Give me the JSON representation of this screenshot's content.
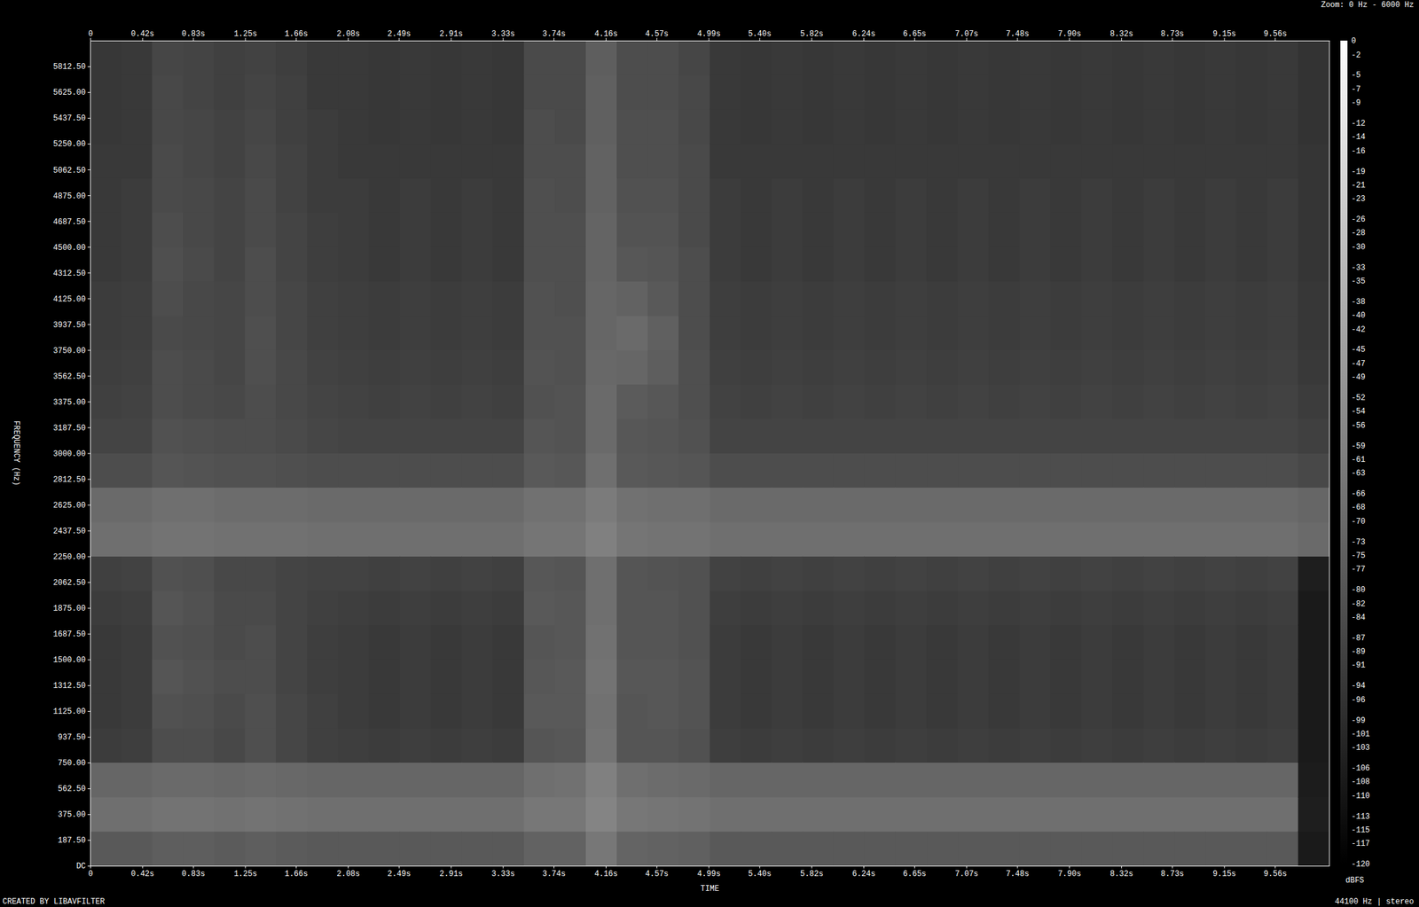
{
  "chart_data": {
    "type": "heatmap",
    "title": "Zoom: 0 Hz - 6000 Hz",
    "x_label": "TIME",
    "y_label": "FREQUENCY (Hz)",
    "annotations": [
      "CREATED BY LIBAVFILTER",
      "44100 Hz | stereo"
    ],
    "xlim": [
      0,
      10
    ],
    "ylim": [
      0,
      6000
    ],
    "xticks": [
      0,
      {
        "value": 0.42,
        "label": "0.42s"
      },
      {
        "value": 0.83,
        "label": "0.83s"
      },
      {
        "value": 1.25,
        "label": "1.25s"
      },
      {
        "value": 1.66,
        "label": "1.66s"
      },
      {
        "value": 2.08,
        "label": "2.08s"
      },
      {
        "value": 2.49,
        "label": "2.49s"
      },
      {
        "value": 2.91,
        "label": "2.91s"
      },
      {
        "value": 3.33,
        "label": "3.33s"
      },
      {
        "value": 3.74,
        "label": "3.74s"
      },
      {
        "value": 4.16,
        "label": "4.16s"
      },
      {
        "value": 4.57,
        "label": "4.57s"
      },
      {
        "value": 4.99,
        "label": "4.99s"
      },
      {
        "value": 5.4,
        "label": "5.40s"
      },
      {
        "value": 5.82,
        "label": "5.82s"
      },
      {
        "value": 6.24,
        "label": "6.24s"
      },
      {
        "value": 6.65,
        "label": "6.65s"
      },
      {
        "value": 7.07,
        "label": "7.07s"
      },
      {
        "value": 7.48,
        "label": "7.48s"
      },
      {
        "value": 7.9,
        "label": "7.90s"
      },
      {
        "value": 8.32,
        "label": "8.32s"
      },
      {
        "value": 8.73,
        "label": "8.73s"
      },
      {
        "value": 9.15,
        "label": "9.15s"
      },
      {
        "value": 9.56,
        "label": "9.56s"
      }
    ],
    "yticks": [
      {
        "value": 0,
        "label": "DC"
      },
      {
        "value": 187.5,
        "label": "187.50"
      },
      {
        "value": 375,
        "label": "375.00"
      },
      {
        "value": 562.5,
        "label": "562.50"
      },
      {
        "value": 750,
        "label": "750.00"
      },
      {
        "value": 937.5,
        "label": "937.50"
      },
      {
        "value": 1125,
        "label": "1125.00"
      },
      {
        "value": 1312.5,
        "label": "1312.50"
      },
      {
        "value": 1500,
        "label": "1500.00"
      },
      {
        "value": 1687.5,
        "label": "1687.50"
      },
      {
        "value": 1875,
        "label": "1875.00"
      },
      {
        "value": 2062.5,
        "label": "2062.50"
      },
      {
        "value": 2250,
        "label": "2250.00"
      },
      {
        "value": 2437.5,
        "label": "2437.50"
      },
      {
        "value": 2625,
        "label": "2625.00"
      },
      {
        "value": 2812.5,
        "label": "2812.50"
      },
      {
        "value": 3000,
        "label": "3000.00"
      },
      {
        "value": 3187.5,
        "label": "3187.50"
      },
      {
        "value": 3375,
        "label": "3375.00"
      },
      {
        "value": 3562.5,
        "label": "3562.50"
      },
      {
        "value": 3750,
        "label": "3750.00"
      },
      {
        "value": 3937.5,
        "label": "3937.50"
      },
      {
        "value": 4125,
        "label": "4125.00"
      },
      {
        "value": 4312.5,
        "label": "4312.50"
      },
      {
        "value": 4500,
        "label": "4500.00"
      },
      {
        "value": 4687.5,
        "label": "4687.50"
      },
      {
        "value": 4875,
        "label": "4875.00"
      },
      {
        "value": 5062.5,
        "label": "5062.50"
      },
      {
        "value": 5250,
        "label": "5250.00"
      },
      {
        "value": 5437.5,
        "label": "5437.50"
      },
      {
        "value": 5625,
        "label": "5625.00"
      },
      {
        "value": 5812.5,
        "label": "5812.50"
      }
    ],
    "x_bins": [
      0,
      0.25,
      0.5,
      0.75,
      1,
      1.25,
      1.5,
      1.75,
      2,
      2.25,
      2.5,
      2.75,
      3,
      3.25,
      3.5,
      3.75,
      4,
      4.25,
      4.5,
      4.75,
      5,
      5.25,
      5.5,
      5.75,
      6,
      6.25,
      6.5,
      6.75,
      7,
      7.25,
      7.5,
      7.75,
      8,
      8.25,
      8.5,
      8.75,
      9,
      9.25,
      9.5,
      9.75,
      10
    ],
    "y_bins": [
      0,
      250,
      500,
      750,
      1000,
      1250,
      1500,
      1750,
      2000,
      2250,
      2500,
      2750,
      3000,
      3250,
      3500,
      3750,
      4000,
      4250,
      4500,
      4750,
      5000,
      5250,
      5500,
      5750,
      6000
    ],
    "cells": [
      [
        -78,
        -68,
        -72,
        -92,
        -93,
        -93,
        -93,
        -92,
        -90,
        -68,
        -70,
        -84,
        -88,
        -90,
        -91,
        -92,
        -92,
        -93,
        -93,
        -93,
        -93,
        -94,
        -94,
        -94
      ],
      [
        -78,
        -68,
        -72,
        -91,
        -92,
        -92,
        -92,
        -91,
        -89,
        -68,
        -70,
        -84,
        -88,
        -89,
        -90,
        -91,
        -91,
        -92,
        -92,
        -92,
        -93,
        -93,
        -93,
        -93
      ],
      [
        -76,
        -66,
        -70,
        -84,
        -82,
        -80,
        -82,
        -80,
        -82,
        -66,
        -68,
        -80,
        -82,
        -84,
        -84,
        -85,
        -84,
        -83,
        -84,
        -85,
        -85,
        -86,
        -86,
        -87
      ],
      [
        -76,
        -66,
        -70,
        -84,
        -83,
        -82,
        -83,
        -82,
        -83,
        -66,
        -68,
        -81,
        -83,
        -85,
        -85,
        -86,
        -86,
        -85,
        -86,
        -86,
        -87,
        -87,
        -88,
        -88
      ],
      [
        -77,
        -67,
        -71,
        -86,
        -85,
        -84,
        -85,
        -85,
        -86,
        -67,
        -69,
        -82,
        -84,
        -86,
        -87,
        -87,
        -87,
        -88,
        -88,
        -88,
        -89,
        -89,
        -90,
        -90
      ],
      [
        -76,
        -66,
        -70,
        -83,
        -83,
        -84,
        -84,
        -85,
        -86,
        -67,
        -69,
        -82,
        -84,
        -84,
        -83,
        -83,
        -84,
        -84,
        -85,
        -85,
        -86,
        -87,
        -88,
        -89
      ],
      [
        -77,
        -67,
        -71,
        -87,
        -87,
        -88,
        -88,
        -88,
        -88,
        -67,
        -69,
        -83,
        -85,
        -86,
        -86,
        -87,
        -87,
        -88,
        -88,
        -89,
        -89,
        -90,
        -90,
        -91
      ],
      [
        -78,
        -68,
        -72,
        -90,
        -90,
        -91,
        -91,
        -90,
        -89,
        -68,
        -70,
        -84,
        -87,
        -88,
        -89,
        -90,
        -90,
        -91,
        -91,
        -92,
        -92,
        -92,
        -93,
        -93
      ],
      [
        -78,
        -68,
        -72,
        -91,
        -92,
        -92,
        -92,
        -91,
        -89,
        -68,
        -70,
        -84,
        -88,
        -89,
        -90,
        -91,
        -91,
        -92,
        -92,
        -92,
        -93,
        -93,
        -93,
        -93
      ],
      [
        -78,
        -68,
        -72,
        -92,
        -93,
        -93,
        -93,
        -92,
        -90,
        -68,
        -70,
        -84,
        -88,
        -90,
        -91,
        -92,
        -92,
        -93,
        -93,
        -93,
        -93,
        -94,
        -94,
        -94
      ],
      [
        -78,
        -68,
        -72,
        -91,
        -92,
        -92,
        -92,
        -91,
        -89,
        -68,
        -70,
        -84,
        -88,
        -89,
        -90,
        -91,
        -91,
        -92,
        -92,
        -92,
        -93,
        -93,
        -93,
        -93
      ],
      [
        -78,
        -68,
        -72,
        -92,
        -93,
        -93,
        -93,
        -92,
        -90,
        -68,
        -70,
        -84,
        -88,
        -90,
        -91,
        -92,
        -92,
        -93,
        -93,
        -93,
        -93,
        -94,
        -94,
        -94
      ],
      [
        -78,
        -68,
        -72,
        -91,
        -92,
        -92,
        -92,
        -91,
        -89,
        -68,
        -70,
        -84,
        -88,
        -89,
        -90,
        -91,
        -91,
        -92,
        -92,
        -92,
        -93,
        -93,
        -93,
        -93
      ],
      [
        -78,
        -68,
        -72,
        -92,
        -93,
        -93,
        -93,
        -92,
        -90,
        -68,
        -70,
        -84,
        -88,
        -90,
        -91,
        -92,
        -92,
        -93,
        -93,
        -93,
        -93,
        -94,
        -94,
        -94
      ],
      [
        -74,
        -64,
        -68,
        -80,
        -78,
        -79,
        -80,
        -78,
        -79,
        -65,
        -67,
        -78,
        -80,
        -82,
        -81,
        -82,
        -82,
        -83,
        -83,
        -83,
        -84,
        -84,
        -85,
        -85
      ],
      [
        -74,
        -64,
        -67,
        -79,
        -78,
        -78,
        -79,
        -79,
        -80,
        -65,
        -67,
        -79,
        -81,
        -81,
        -82,
        -82,
        -83,
        -83,
        -83,
        -84,
        -84,
        -85,
        -85,
        -85
      ],
      [
        -64,
        -58,
        -60,
        -66,
        -67,
        -66,
        -67,
        -68,
        -68,
        -60,
        -62,
        -68,
        -70,
        -70,
        -71,
        -72,
        -72,
        -73,
        -73,
        -74,
        -74,
        -75,
        -75,
        -76
      ],
      [
        -73,
        -64,
        -68,
        -80,
        -80,
        -79,
        -80,
        -80,
        -80,
        -65,
        -67,
        -78,
        -79,
        -77,
        -72,
        -70,
        -74,
        -79,
        -81,
        -82,
        -83,
        -83,
        -84,
        -84
      ],
      [
        -74,
        -65,
        -69,
        -80,
        -79,
        -79,
        -80,
        -80,
        -81,
        -66,
        -68,
        -79,
        -80,
        -79,
        -76,
        -75,
        -78,
        -80,
        -81,
        -82,
        -83,
        -83,
        -84,
        -84
      ],
      [
        -75,
        -66,
        -70,
        -82,
        -81,
        -81,
        -82,
        -82,
        -82,
        -66,
        -68,
        -80,
        -82,
        -83,
        -83,
        -84,
        -84,
        -84,
        -85,
        -85,
        -85,
        -86,
        -86,
        -87
      ],
      [
        -78,
        -68,
        -72,
        -91,
        -92,
        -92,
        -92,
        -91,
        -89,
        -68,
        -70,
        -84,
        -88,
        -89,
        -90,
        -91,
        -91,
        -92,
        -92,
        -92,
        -93,
        -93,
        -93,
        -93
      ],
      [
        -78,
        -68,
        -72,
        -92,
        -93,
        -93,
        -93,
        -92,
        -90,
        -68,
        -70,
        -84,
        -88,
        -90,
        -91,
        -92,
        -92,
        -93,
        -93,
        -93,
        -93,
        -94,
        -94,
        -94
      ],
      [
        -78,
        -68,
        -72,
        -91,
        -92,
        -92,
        -92,
        -91,
        -89,
        -68,
        -70,
        -84,
        -88,
        -89,
        -90,
        -91,
        -91,
        -92,
        -92,
        -92,
        -93,
        -93,
        -93,
        -93
      ],
      [
        -78,
        -68,
        -72,
        -92,
        -93,
        -93,
        -93,
        -92,
        -90,
        -68,
        -70,
        -84,
        -88,
        -90,
        -91,
        -92,
        -92,
        -93,
        -93,
        -93,
        -93,
        -94,
        -94,
        -94
      ],
      [
        -78,
        -68,
        -72,
        -91,
        -92,
        -92,
        -92,
        -91,
        -89,
        -68,
        -70,
        -84,
        -88,
        -89,
        -90,
        -91,
        -91,
        -92,
        -92,
        -92,
        -93,
        -93,
        -93,
        -93
      ],
      [
        -78,
        -68,
        -72,
        -92,
        -93,
        -93,
        -93,
        -92,
        -90,
        -68,
        -70,
        -84,
        -88,
        -90,
        -91,
        -92,
        -92,
        -93,
        -93,
        -93,
        -93,
        -94,
        -94,
        -94
      ],
      [
        -78,
        -68,
        -72,
        -91,
        -92,
        -92,
        -92,
        -91,
        -89,
        -68,
        -70,
        -84,
        -88,
        -89,
        -90,
        -91,
        -91,
        -92,
        -92,
        -92,
        -93,
        -93,
        -93,
        -93
      ],
      [
        -78,
        -68,
        -72,
        -92,
        -93,
        -93,
        -93,
        -92,
        -90,
        -68,
        -70,
        -84,
        -88,
        -90,
        -91,
        -92,
        -92,
        -93,
        -93,
        -93,
        -93,
        -94,
        -94,
        -94
      ],
      [
        -78,
        -68,
        -72,
        -91,
        -92,
        -92,
        -92,
        -91,
        -89,
        -68,
        -70,
        -84,
        -88,
        -89,
        -90,
        -91,
        -91,
        -92,
        -92,
        -92,
        -93,
        -93,
        -93,
        -93
      ],
      [
        -78,
        -68,
        -72,
        -92,
        -93,
        -93,
        -93,
        -92,
        -90,
        -68,
        -70,
        -84,
        -88,
        -90,
        -91,
        -92,
        -92,
        -93,
        -93,
        -93,
        -93,
        -94,
        -94,
        -94
      ],
      [
        -78,
        -68,
        -72,
        -91,
        -92,
        -92,
        -92,
        -91,
        -89,
        -68,
        -70,
        -84,
        -88,
        -89,
        -90,
        -91,
        -91,
        -92,
        -92,
        -92,
        -93,
        -93,
        -93,
        -93
      ],
      [
        -78,
        -68,
        -72,
        -92,
        -93,
        -93,
        -93,
        -92,
        -90,
        -68,
        -70,
        -84,
        -88,
        -90,
        -91,
        -92,
        -92,
        -93,
        -93,
        -93,
        -93,
        -94,
        -94,
        -94
      ],
      [
        -78,
        -68,
        -72,
        -91,
        -92,
        -92,
        -92,
        -91,
        -89,
        -68,
        -70,
        -84,
        -88,
        -89,
        -90,
        -91,
        -91,
        -92,
        -92,
        -92,
        -93,
        -93,
        -93,
        -93
      ],
      [
        -78,
        -68,
        -72,
        -92,
        -93,
        -93,
        -93,
        -92,
        -90,
        -68,
        -70,
        -84,
        -88,
        -90,
        -91,
        -92,
        -92,
        -93,
        -93,
        -93,
        -93,
        -94,
        -94,
        -94
      ],
      [
        -78,
        -68,
        -72,
        -91,
        -92,
        -92,
        -92,
        -91,
        -89,
        -68,
        -70,
        -84,
        -88,
        -89,
        -90,
        -91,
        -91,
        -92,
        -92,
        -92,
        -93,
        -93,
        -93,
        -93
      ],
      [
        -78,
        -68,
        -72,
        -92,
        -93,
        -93,
        -93,
        -92,
        -90,
        -68,
        -70,
        -84,
        -88,
        -90,
        -91,
        -92,
        -92,
        -93,
        -93,
        -93,
        -93,
        -94,
        -94,
        -94
      ],
      [
        -78,
        -68,
        -72,
        -91,
        -92,
        -92,
        -92,
        -91,
        -89,
        -68,
        -70,
        -84,
        -88,
        -89,
        -90,
        -91,
        -91,
        -92,
        -92,
        -92,
        -93,
        -93,
        -93,
        -93
      ],
      [
        -78,
        -68,
        -72,
        -92,
        -93,
        -93,
        -93,
        -92,
        -90,
        -68,
        -70,
        -84,
        -88,
        -90,
        -91,
        -92,
        -92,
        -93,
        -93,
        -93,
        -93,
        -94,
        -94,
        -94
      ],
      [
        -78,
        -68,
        -72,
        -91,
        -92,
        -92,
        -92,
        -91,
        -89,
        -68,
        -70,
        -84,
        -88,
        -89,
        -90,
        -91,
        -91,
        -92,
        -92,
        -92,
        -93,
        -93,
        -93,
        -93
      ],
      [
        -108,
        -106,
        -107,
        -108,
        -108,
        -108,
        -108,
        -108,
        -106,
        -70,
        -72,
        -86,
        -90,
        -92,
        -93,
        -94,
        -94,
        -95,
        -95,
        -95,
        -95,
        -96,
        -96,
        -96
      ]
    ],
    "colorbar": {
      "label": "dBFS",
      "range": [
        -120,
        0
      ],
      "ticks": [
        0,
        -2,
        -5,
        -7,
        -9,
        -12,
        -14,
        -16,
        -19,
        -21,
        -23,
        -26,
        -28,
        -30,
        -33,
        -35,
        -38,
        -40,
        -42,
        -45,
        -47,
        -49,
        -52,
        -54,
        -56,
        -59,
        -61,
        -63,
        -66,
        -68,
        -70,
        -73,
        -75,
        -77,
        -80,
        -82,
        -84,
        -87,
        -89,
        -91,
        -94,
        -96,
        -99,
        -101,
        -103,
        -106,
        -108,
        -110,
        -113,
        -115,
        -117,
        -120
      ]
    }
  }
}
